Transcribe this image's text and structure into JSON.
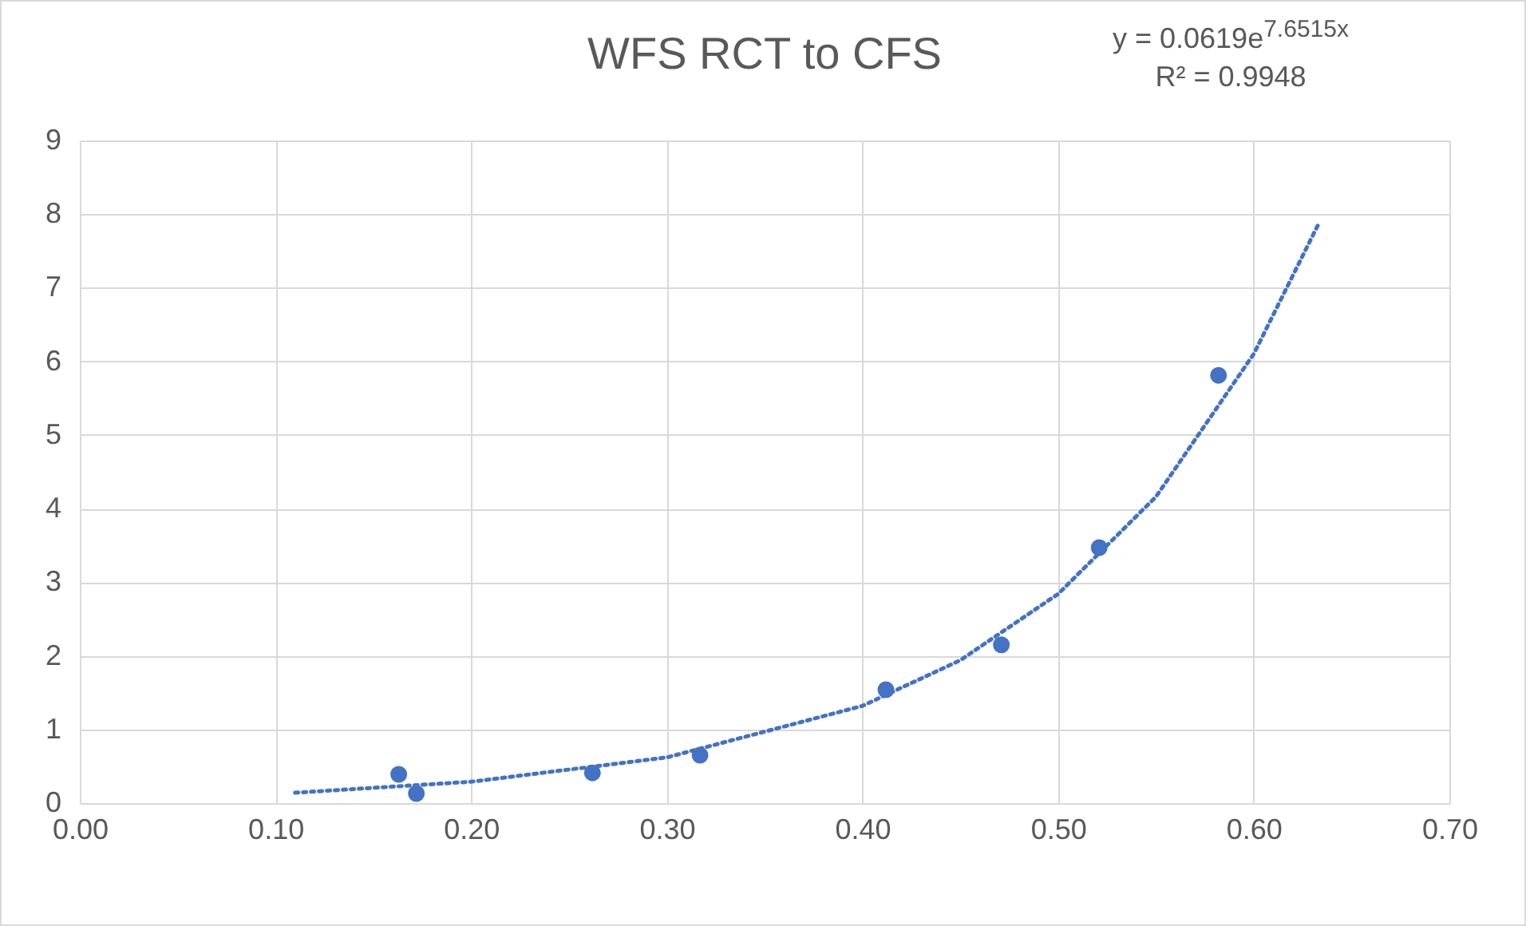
{
  "chart_data": {
    "type": "scatter",
    "title": "WFS RCT to CFS",
    "marker": "circle",
    "grid": true,
    "xlim": [
      0,
      0.7
    ],
    "xticks": [
      {
        "value": 0,
        "label": "0.00"
      },
      {
        "value": 0.1,
        "label": "0.10"
      },
      {
        "value": 0.2,
        "label": "0.20"
      },
      {
        "value": 0.3,
        "label": "0.30"
      },
      {
        "value": 0.4,
        "label": "0.40"
      },
      {
        "value": 0.5,
        "label": "0.50"
      },
      {
        "value": 0.6,
        "label": "0.60"
      },
      {
        "value": 0.7,
        "label": "0.70"
      }
    ],
    "ylim": [
      0,
      9
    ],
    "yticks": [
      0,
      1,
      2,
      3,
      4,
      5,
      6,
      7,
      8,
      9
    ],
    "series": [
      {
        "color": "#4472c4",
        "x": [
          0.163,
          0.172,
          0.262,
          0.317,
          0.412,
          0.471,
          0.521,
          0.582
        ],
        "values": [
          0.39,
          0.13,
          0.41,
          0.65,
          1.54,
          2.15,
          3.47,
          5.81
        ]
      },
      {
        "type": "line",
        "color": "#4472c4",
        "line_style": "dotted",
        "marker": "none",
        "x": [
          0.11,
          0.2,
          0.3,
          0.4,
          0.45,
          0.5,
          0.55,
          0.6,
          0.633
        ],
        "values": [
          0.14,
          0.29,
          0.62,
          1.32,
          1.94,
          2.84,
          4.16,
          6.1,
          7.86
        ]
      }
    ],
    "annotations": [
      "y = 0.0619e$^{7.6515x}$",
      "R² = 0.9948"
    ]
  }
}
